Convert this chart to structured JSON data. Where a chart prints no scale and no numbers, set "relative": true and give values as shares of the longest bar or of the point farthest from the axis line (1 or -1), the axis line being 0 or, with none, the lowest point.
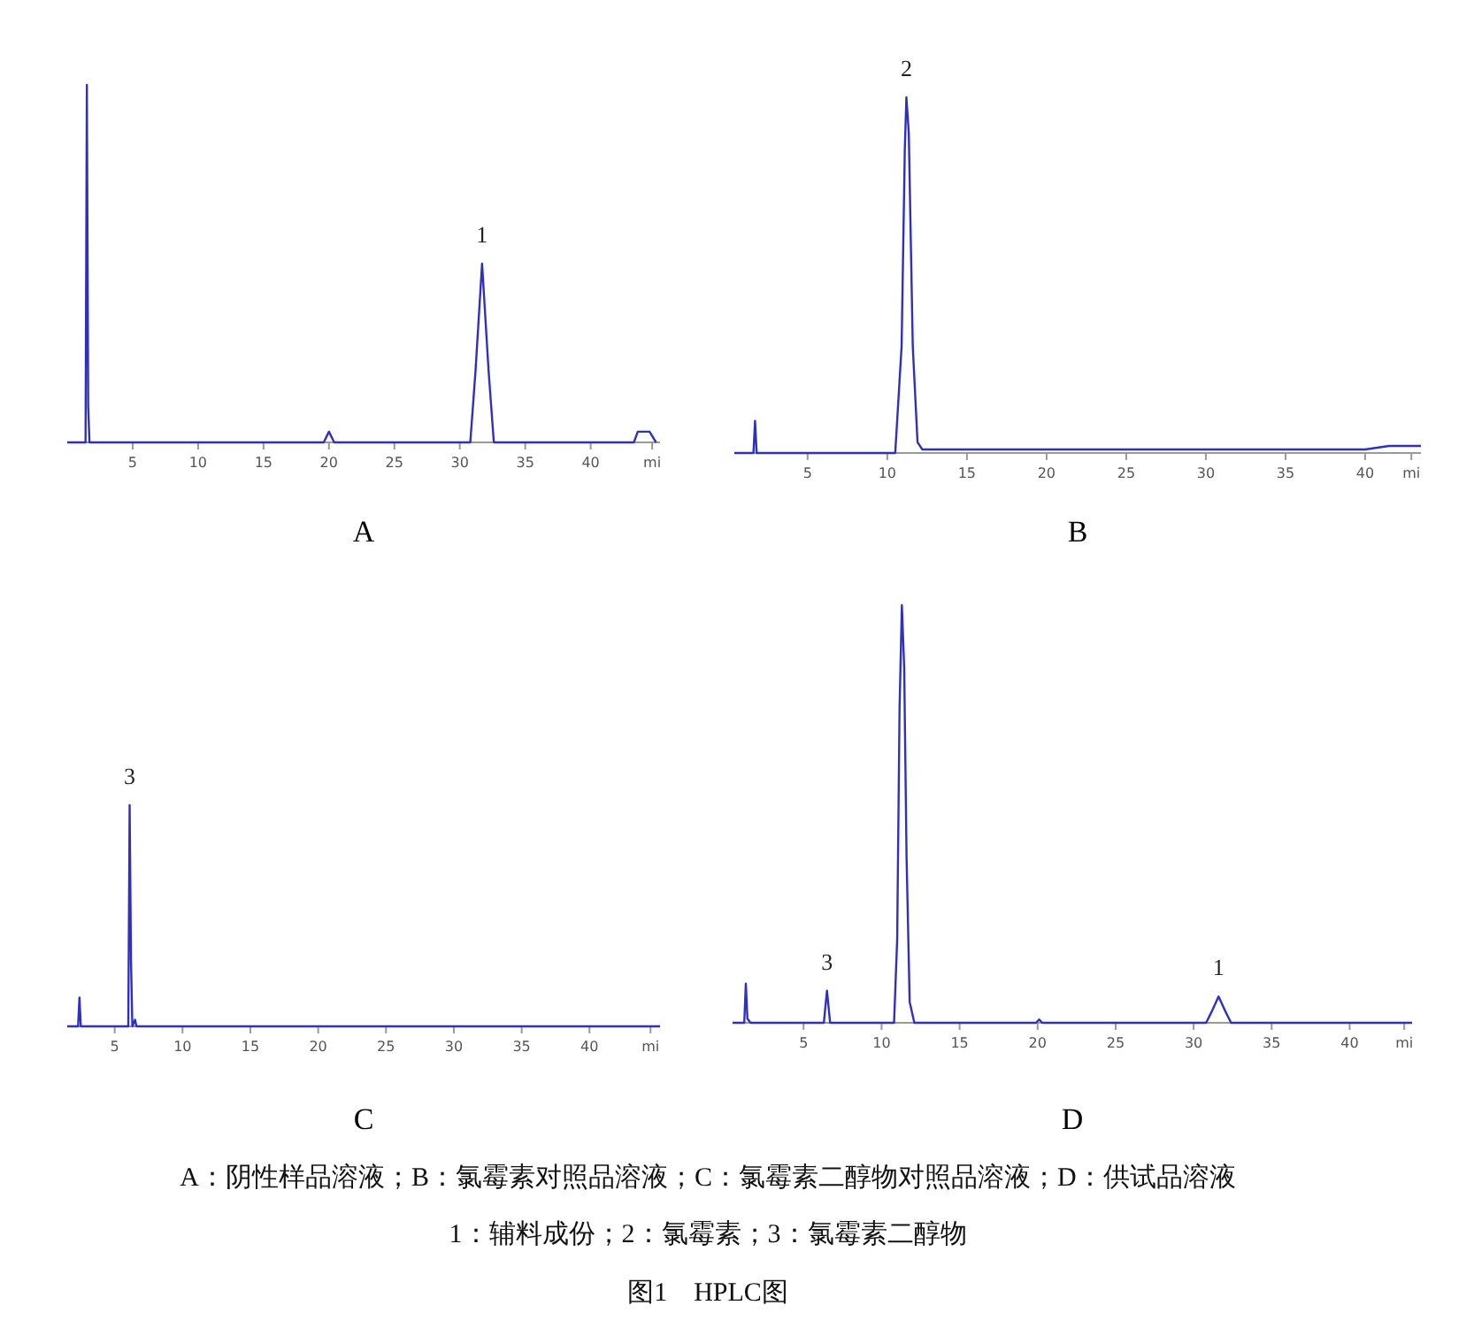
{
  "chart_data": [
    {
      "type": "line",
      "relative": true,
      "xlabel": "A",
      "color": "#3030c0",
      "xlim": [
        0,
        45.3
      ],
      "xticks": [
        5,
        10,
        15,
        20,
        25,
        30,
        35,
        40,
        {
          "value": 44.7,
          "label": "mi"
        }
      ],
      "x": [
        0,
        1.4,
        1.5,
        1.6,
        1.7,
        1.9,
        19.6,
        20,
        20.4,
        30.8,
        31.2,
        31.7,
        32.2,
        32.6,
        43.3,
        43.6,
        44.5,
        45
      ],
      "values": [
        0,
        0,
        1,
        0.1,
        0,
        0,
        0,
        0.03,
        0,
        0,
        0.2,
        0.5,
        0.2,
        0,
        0,
        0.03,
        0.03,
        0
      ],
      "annotations": [
        {
          "text": "1",
          "x": 31.7,
          "y": 0.5
        }
      ]
    },
    {
      "type": "line",
      "relative": true,
      "xlabel": "B",
      "color": "#3030c0",
      "xlim": [
        0.4,
        43.5
      ],
      "xticks": [
        5,
        10,
        15,
        20,
        25,
        30,
        35,
        40,
        {
          "value": 42.9,
          "label": "mi"
        }
      ],
      "x": [
        0.4,
        1.6,
        1.7,
        1.8,
        2,
        10.5,
        10.9,
        11.1,
        11.2,
        11.35,
        11.6,
        11.9,
        12.2,
        40,
        41.5,
        43.5
      ],
      "values": [
        0,
        0,
        0.09,
        0,
        0,
        0,
        0.3,
        0.85,
        1,
        0.9,
        0.3,
        0.03,
        0.01,
        0.01,
        0.02,
        0.02
      ],
      "annotations": [
        {
          "text": "2",
          "x": 11.2,
          "y": 1
        }
      ]
    },
    {
      "type": "line",
      "relative": true,
      "xlabel": "C",
      "color": "#3030c0",
      "xlim": [
        1.5,
        45.2
      ],
      "xticks": [
        5,
        10,
        15,
        20,
        25,
        30,
        35,
        40,
        {
          "value": 44.5,
          "label": "mi"
        }
      ],
      "x": [
        1.5,
        2.3,
        2.4,
        2.5,
        6.0,
        6.1,
        6.2,
        6.3,
        6.5,
        6.6,
        45.2
      ],
      "values": [
        0,
        0,
        0.13,
        0,
        0,
        1,
        0.3,
        0,
        0.03,
        0,
        0
      ],
      "annotations": [
        {
          "text": "3",
          "x": 6.1,
          "y": 1
        }
      ]
    },
    {
      "type": "line",
      "relative": true,
      "xlabel": "D",
      "color": "#3030c0",
      "xlim": [
        0.45,
        44
      ],
      "xticks": [
        5,
        10,
        15,
        20,
        25,
        30,
        35,
        40,
        {
          "value": 43.5,
          "label": "mi"
        }
      ],
      "x": [
        0.45,
        1.2,
        1.3,
        1.4,
        1.6,
        6.3,
        6.5,
        6.7,
        10.8,
        11.0,
        11.15,
        11.3,
        11.45,
        11.6,
        11.8,
        12.1,
        19.9,
        20.1,
        20.3,
        30.8,
        31.2,
        31.6,
        32.0,
        32.4,
        44
      ],
      "values": [
        0,
        0,
        0.094,
        0.01,
        0,
        0,
        0.077,
        0,
        0,
        0.2,
        0.75,
        1,
        0.85,
        0.4,
        0.05,
        0,
        0,
        0.008,
        0,
        0,
        0.03,
        0.063,
        0.03,
        0,
        0
      ],
      "annotations": [
        {
          "text": "3",
          "x": 6.5,
          "y": 0.077
        },
        {
          "text": "1",
          "x": 31.6,
          "y": 0.063
        }
      ]
    },
    {
      "type": "other",
      "title": "图1　HPLC图",
      "annotations": [
        "A：阴性样品溶液；B：氯霉素对照品溶液；C：氯霉素二醇物对照品溶液；D：供试品溶液",
        "1：辅料成份；2：氯霉素；3：氯霉素二醇物"
      ]
    }
  ]
}
